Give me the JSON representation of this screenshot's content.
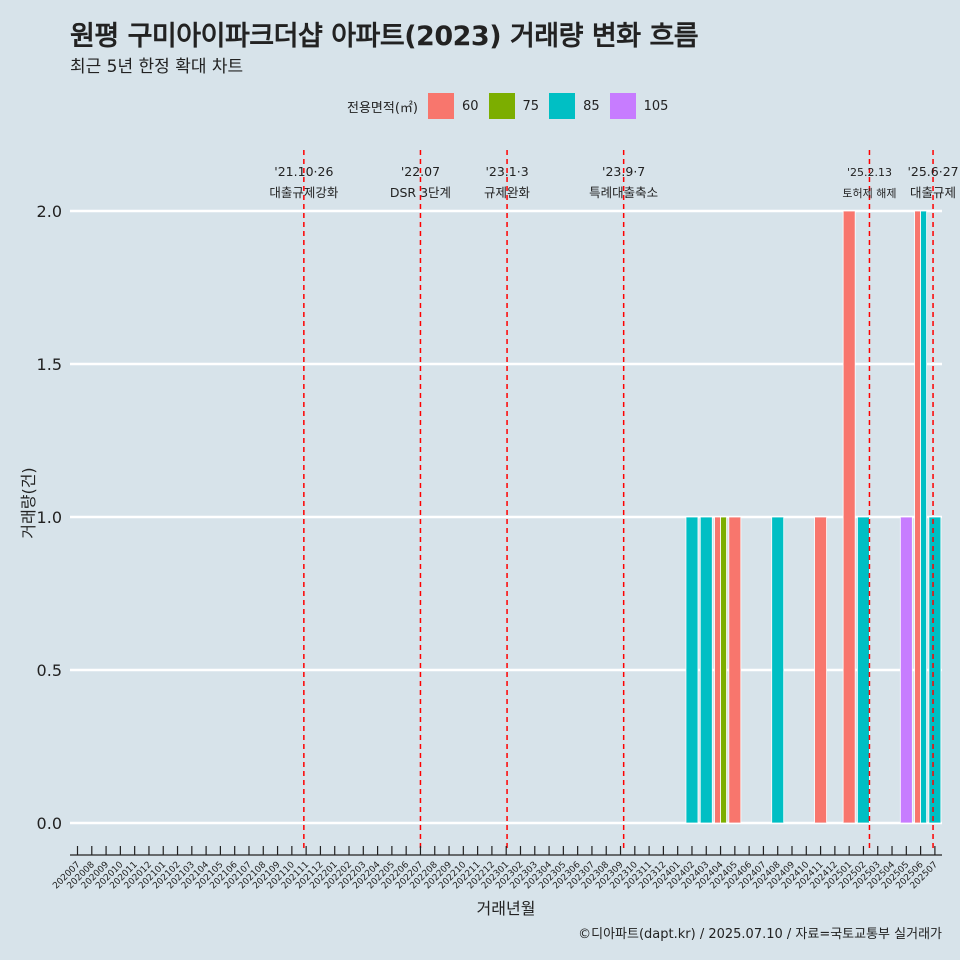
{
  "title": "원평 구미아이파크더샵 아파트(2023) 거래량 변화 흐름",
  "subtitle": "최근 5년 한정 확대 차트",
  "caption": "©디아파트(dapt.kr) / 2025.07.10 / 자료=국토교통부 실거래가",
  "legend": {
    "title": "전용면적(㎡)",
    "items": [
      {
        "label": "60",
        "color": "#f8766d"
      },
      {
        "label": "75",
        "color": "#7cae00"
      },
      {
        "label": "85",
        "color": "#00bfc4"
      },
      {
        "label": "105",
        "color": "#c77cff"
      }
    ]
  },
  "chart_data": {
    "type": "bar",
    "xlabel": "거래년월",
    "ylabel": "거래량(건)",
    "ylim": [
      0,
      2.0
    ],
    "yticks": [
      "0.0",
      "0.5",
      "1.0",
      "1.5",
      "2.0"
    ],
    "categories": [
      "202007",
      "202008",
      "202009",
      "202010",
      "202011",
      "202012",
      "202101",
      "202102",
      "202103",
      "202104",
      "202105",
      "202106",
      "202107",
      "202108",
      "202109",
      "202110",
      "202111",
      "202112",
      "202201",
      "202202",
      "202203",
      "202204",
      "202205",
      "202206",
      "202207",
      "202208",
      "202209",
      "202210",
      "202211",
      "202212",
      "202301",
      "202302",
      "202303",
      "202304",
      "202305",
      "202306",
      "202307",
      "202308",
      "202309",
      "202310",
      "202311",
      "202312",
      "202401",
      "202402",
      "202403",
      "202404",
      "202405",
      "202406",
      "202407",
      "202408",
      "202409",
      "202410",
      "202411",
      "202412",
      "202501",
      "202502",
      "202503",
      "202504",
      "202505",
      "202506",
      "202507"
    ],
    "bars": [
      {
        "month": "202402",
        "area": "85",
        "value": 1
      },
      {
        "month": "202403",
        "area": "85",
        "value": 1
      },
      {
        "month": "202404",
        "area": "60",
        "value": 1
      },
      {
        "month": "202404",
        "area": "75",
        "value": 1
      },
      {
        "month": "202405",
        "area": "60",
        "value": 1
      },
      {
        "month": "202408",
        "area": "85",
        "value": 1
      },
      {
        "month": "202411",
        "area": "60",
        "value": 1
      },
      {
        "month": "202501",
        "area": "60",
        "value": 2
      },
      {
        "month": "202502",
        "area": "85",
        "value": 1
      },
      {
        "month": "202505",
        "area": "105",
        "value": 1
      },
      {
        "month": "202506",
        "area": "60",
        "value": 2
      },
      {
        "month": "202506",
        "area": "85",
        "value": 2
      },
      {
        "month": "202507",
        "area": "85",
        "value": 1
      }
    ],
    "events": [
      {
        "month": "202110",
        "frac": 0.84,
        "date": "'21.10·26",
        "label": "대출규제강화"
      },
      {
        "month": "202207",
        "frac": 0.0,
        "date": "'22.07",
        "label": "DSR 3단계"
      },
      {
        "month": "202301",
        "frac": 0.06,
        "date": "'23.1·3",
        "label": "규제완화"
      },
      {
        "month": "202309",
        "frac": 0.22,
        "date": "'23.9·7",
        "label": "특례대출축소"
      },
      {
        "month": "202502",
        "frac": 0.42,
        "date": "'25.2.13",
        "label": "토허제 해제"
      },
      {
        "month": "202506",
        "frac": 0.87,
        "date": "'25.6·27",
        "label": "대출규제"
      }
    ]
  }
}
